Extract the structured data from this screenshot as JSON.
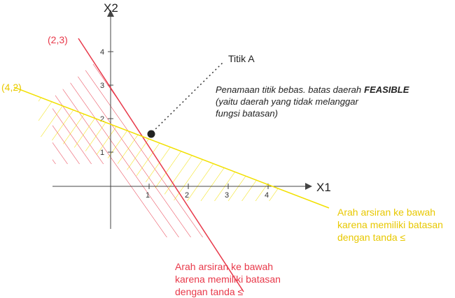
{
  "axes": {
    "x_label": "X1",
    "y_label": "X2",
    "x_ticks": [
      "1",
      "2",
      "3",
      "4"
    ],
    "y_ticks": [
      "1",
      "2",
      "3",
      "4"
    ]
  },
  "lines": [
    {
      "label": "(2,3)",
      "note": [
        "Arah arsiran ke bawah",
        "karena memiliki batasan",
        "dengan tanda ≤"
      ]
    },
    {
      "label": "(4,2)",
      "note": [
        "Arah arsiran ke bawah",
        "karena memiliki batasan",
        "dengan tanda ≤"
      ]
    }
  ],
  "point": {
    "label": "Titik A",
    "description": {
      "text": "Penamaan titik bebas. batas daerah",
      "emphasis": "FEASIBLE",
      "lines": [
        "(yaitu daerah yang tidak melanggar",
        "fungsi batasan)"
      ]
    }
  }
}
